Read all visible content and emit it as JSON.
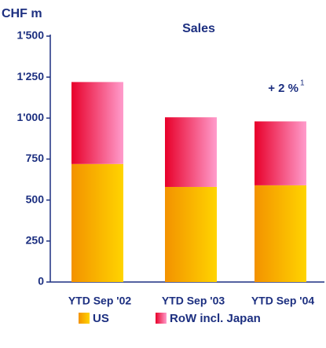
{
  "chart_data": {
    "type": "bar",
    "stacked": true,
    "title": "Sales",
    "y_label": "CHF m",
    "categories": [
      "YTD Sep '02",
      "YTD Sep '03",
      "YTD Sep '04"
    ],
    "series": [
      {
        "name": "US",
        "color": [
          "#f39200",
          "#ffd400"
        ],
        "values": [
          720,
          580,
          590
        ]
      },
      {
        "name": "RoW incl. Japan",
        "color": [
          "#e8002a",
          "#ff9ccc"
        ],
        "values": [
          500,
          425,
          390
        ]
      }
    ],
    "ylim": [
      0,
      1500
    ],
    "yticks": [
      0,
      250,
      500,
      750,
      {
        "value": 1000,
        "label": "1'000"
      },
      {
        "value": 1250,
        "label": "1'250"
      },
      {
        "value": 1500,
        "label": "1'500"
      }
    ],
    "grid": false,
    "annotation": {
      "text": "+ 2 %",
      "superscript": "1"
    }
  }
}
